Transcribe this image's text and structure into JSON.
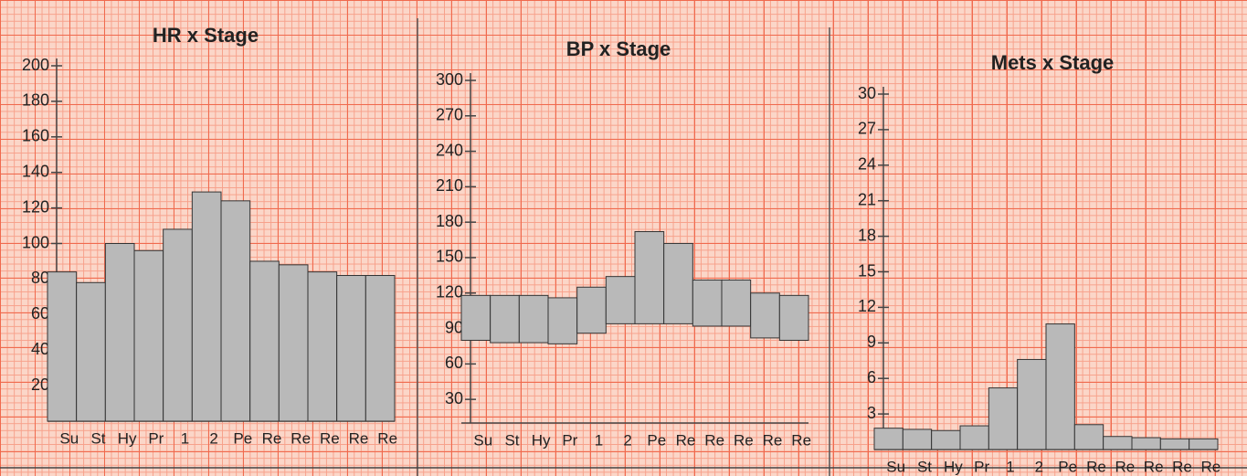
{
  "chart_data": [
    {
      "type": "bar",
      "title": "HR x Stage",
      "categories": [
        "Su",
        "St",
        "Hy",
        "Pr",
        "1",
        "2",
        "Pe",
        "Re",
        "Re",
        "Re",
        "Re",
        "Re"
      ],
      "values": [
        84,
        78,
        100,
        96,
        108,
        129,
        124,
        90,
        88,
        84,
        82,
        82
      ],
      "ylim": [
        0,
        200
      ],
      "yticks": [
        20,
        40,
        60,
        80,
        100,
        120,
        140,
        160,
        180,
        200
      ],
      "color": "#b9b9b9"
    },
    {
      "type": "range",
      "title": "BP x Stage",
      "categories": [
        "Su",
        "St",
        "Hy",
        "Pr",
        "1",
        "2",
        "Pe",
        "Re",
        "Re",
        "Re",
        "Re",
        "Re"
      ],
      "series": [
        {
          "values": [
            80,
            78,
            78,
            77,
            86,
            94,
            94,
            94,
            92,
            92,
            82,
            80
          ]
        },
        {
          "values": [
            118,
            118,
            118,
            116,
            125,
            134,
            172,
            162,
            131,
            131,
            120,
            118
          ]
        }
      ],
      "ylim": [
        10,
        300
      ],
      "yticks": [
        30,
        60,
        90,
        120,
        150,
        180,
        210,
        240,
        270,
        300
      ],
      "color": "#b9b9b9"
    },
    {
      "type": "bar",
      "title": "Mets x Stage",
      "categories": [
        "Su",
        "St",
        "Hy",
        "Pr",
        "1",
        "2",
        "Pe",
        "Re",
        "Re",
        "Re",
        "Re",
        "Re"
      ],
      "values": [
        1.8,
        1.7,
        1.6,
        2.0,
        5.2,
        7.6,
        10.6,
        2.1,
        1.1,
        1.0,
        0.9,
        0.9
      ],
      "ylim": [
        0,
        30
      ],
      "yticks": [
        3,
        6,
        9,
        12,
        15,
        18,
        21,
        24,
        27,
        30
      ],
      "color": "#b9b9b9"
    }
  ]
}
